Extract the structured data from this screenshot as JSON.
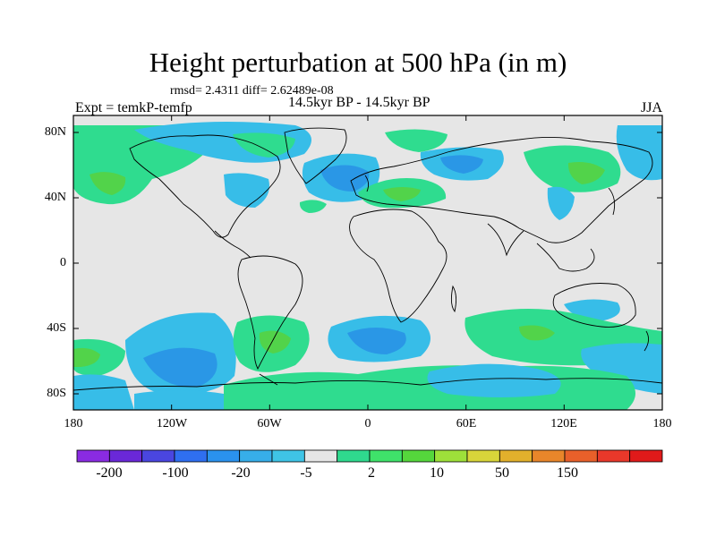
{
  "title": "Height perturbation at 500 hPa (in m)",
  "stats": "rmsd= 2.4311 diff= 2.62489e-08",
  "experiment": "Expt = temkP-temfp",
  "period": "14.5kyr BP - 14.5kyr BP",
  "season": "JJA",
  "axes": {
    "lat_labels": [
      "80N",
      "40N",
      "0",
      "40S",
      "80S"
    ],
    "lon_labels": [
      "180",
      "120W",
      "60W",
      "0",
      "60E",
      "120E",
      "180"
    ]
  },
  "colorbar": {
    "labels": [
      "-200",
      "-100",
      "-20",
      "-5",
      "2",
      "10",
      "50",
      "150"
    ],
    "colors": [
      "#8a2be2",
      "#6a28d8",
      "#4a46e0",
      "#2f6ff0",
      "#2a92ee",
      "#37aee9",
      "#3fc4e6",
      "#e6e6e6",
      "#2fd98e",
      "#3fe26a",
      "#55d63c",
      "#9ee03a",
      "#d8d53a",
      "#e2b02c",
      "#e8862a",
      "#e8602a",
      "#e8382a",
      "#e01a1a"
    ]
  },
  "map": {
    "background": "#e6e6e6",
    "fill_blue_light": "#37bde8",
    "fill_blue_mid": "#2a97e6",
    "fill_blue_dark": "#2b73d8",
    "fill_green": "#2fdc8f",
    "fill_green_dark": "#52d34a"
  }
}
